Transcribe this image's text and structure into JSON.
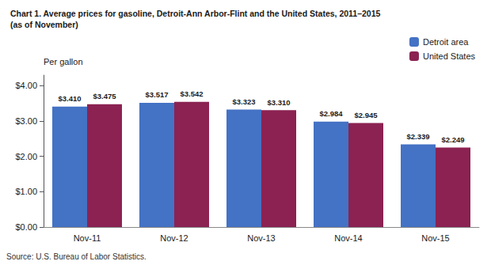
{
  "chart_data": {
    "type": "bar",
    "title": "Chart 1. Average prices for gasoline, Detroit-Ann Arbor-Flint and the United States, 2011–2015",
    "subtitle": "(as of November)",
    "ylabel": "Per gallon",
    "annotations": [
      "Source: U.S. Bureau of Labor Statistics."
    ],
    "categories": [
      "Nov-11",
      "Nov-12",
      "Nov-13",
      "Nov-14",
      "Nov-15"
    ],
    "series": [
      {
        "name": "Detroit area",
        "color": "#4472C4",
        "values": [
          3.41,
          3.517,
          3.323,
          2.984,
          2.339
        ],
        "value_labels": [
          "$3.410",
          "$3.517",
          "$3.323",
          "$2.984",
          "$2.339"
        ]
      },
      {
        "name": "United States",
        "color": "#8B2252",
        "values": [
          3.475,
          3.542,
          3.31,
          2.945,
          2.249
        ],
        "value_labels": [
          "$3.475",
          "$3.542",
          "$3.310",
          "$2.945",
          "$2.249"
        ]
      }
    ],
    "ylim": [
      0,
      4.3
    ],
    "yticks": [
      {
        "value": 0.0,
        "label": "$0.00"
      },
      {
        "value": 1.0,
        "label": "$1.00"
      },
      {
        "value": 2.0,
        "label": "$2.00"
      },
      {
        "value": 3.0,
        "label": "$3.00"
      },
      {
        "value": 4.0,
        "label": "$4.00"
      }
    ],
    "grid": false,
    "legend": "upper right",
    "data_labels": true
  }
}
